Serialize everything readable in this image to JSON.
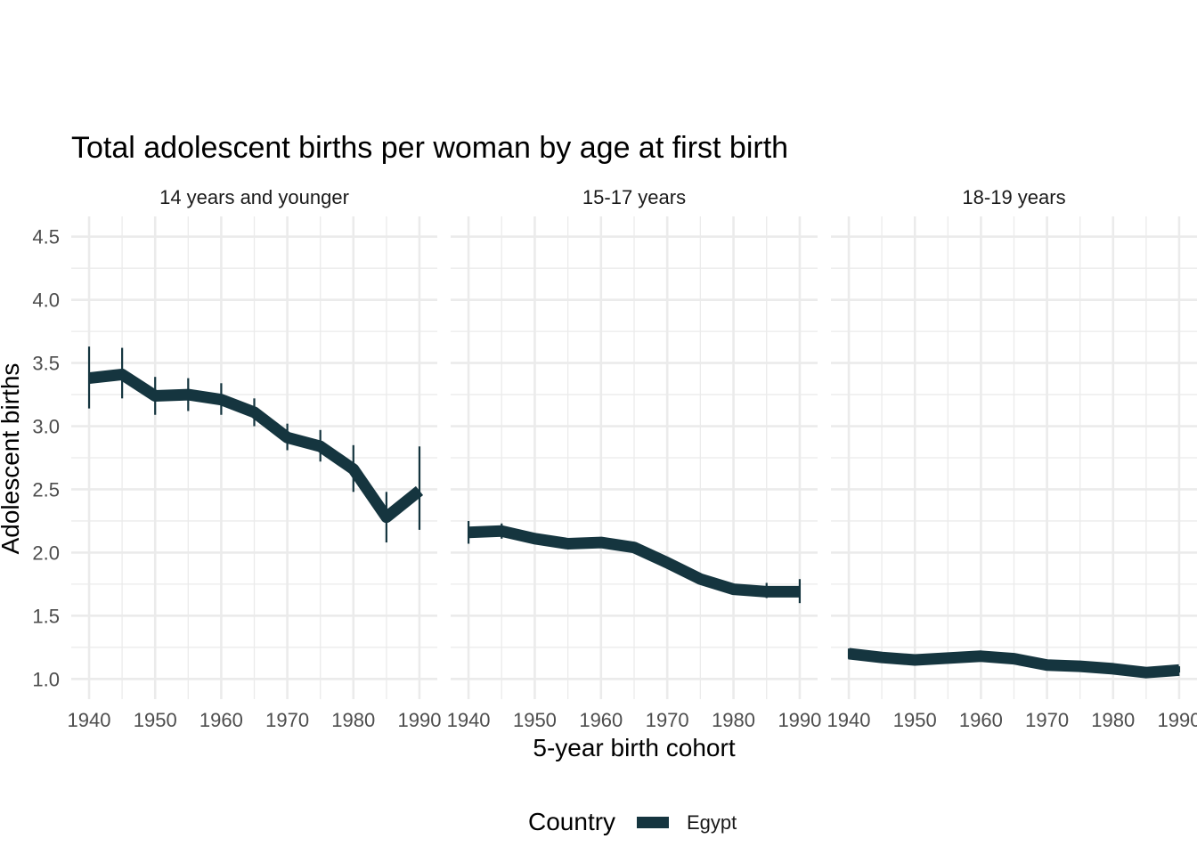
{
  "chart_data": {
    "type": "line",
    "title": "Total adolescent births per woman by age at first birth",
    "xlabel": "5-year birth cohort",
    "ylabel": "Adolescent births",
    "x_ticks": [
      1940,
      1950,
      1960,
      1970,
      1980,
      1990
    ],
    "x_tick_labels": [
      "1940",
      "1950",
      "1960",
      "1970",
      "1980",
      "1990"
    ],
    "y_ticks": [
      1.0,
      1.5,
      2.0,
      2.5,
      3.0,
      3.5,
      4.0,
      4.5
    ],
    "y_tick_labels": [
      "1.0",
      "1.5",
      "2.0",
      "2.5",
      "3.0",
      "3.5",
      "4.0",
      "4.5"
    ],
    "xlim": [
      1937.3,
      1992.7
    ],
    "ylim": [
      0.84,
      4.66
    ],
    "grid": true,
    "legend": {
      "title": "Country",
      "position": "bottom",
      "entries": [
        {
          "name": "Egypt",
          "color": "#15353f"
        }
      ]
    },
    "series_color": "#15353f",
    "panels": [
      {
        "label": "14 years and younger",
        "series": [
          {
            "name": "Egypt",
            "x": [
              1940,
              1945,
              1950,
              1955,
              1960,
              1965,
              1970,
              1975,
              1980,
              1985,
              1990
            ],
            "values": [
              3.38,
              3.41,
              3.24,
              3.25,
              3.21,
              3.11,
              2.91,
              2.84,
              2.66,
              2.28,
              2.49
            ],
            "lower": [
              3.14,
              3.22,
              3.09,
              3.12,
              3.09,
              3.0,
              2.81,
              2.72,
              2.48,
              2.08,
              2.18
            ],
            "upper": [
              3.63,
              3.62,
              3.39,
              3.38,
              3.34,
              3.22,
              3.02,
              2.97,
              2.85,
              2.48,
              2.84
            ]
          }
        ]
      },
      {
        "label": "15-17 years",
        "series": [
          {
            "name": "Egypt",
            "x": [
              1940,
              1945,
              1950,
              1955,
              1960,
              1965,
              1970,
              1975,
              1980,
              1985,
              1990
            ],
            "values": [
              2.16,
              2.17,
              2.11,
              2.07,
              2.08,
              2.04,
              1.92,
              1.79,
              1.71,
              1.69,
              1.69
            ],
            "lower": [
              2.07,
              2.11,
              2.07,
              2.04,
              2.05,
              2.01,
              1.89,
              1.76,
              1.68,
              1.64,
              1.6
            ],
            "upper": [
              2.25,
              2.23,
              2.15,
              2.1,
              2.11,
              2.07,
              1.95,
              1.82,
              1.74,
              1.76,
              1.79
            ]
          }
        ]
      },
      {
        "label": "18-19 years",
        "series": [
          {
            "name": "Egypt",
            "x": [
              1940,
              1945,
              1950,
              1955,
              1960,
              1965,
              1970,
              1975,
              1980,
              1985,
              1990
            ],
            "values": [
              1.2,
              1.17,
              1.15,
              1.165,
              1.18,
              1.16,
              1.11,
              1.1,
              1.08,
              1.05,
              1.07
            ],
            "lower": [
              1.16,
              1.15,
              1.135,
              1.15,
              1.165,
              1.145,
              1.1,
              1.09,
              1.07,
              1.04,
              1.05
            ],
            "upper": [
              1.24,
              1.19,
              1.165,
              1.18,
              1.195,
              1.175,
              1.125,
              1.11,
              1.09,
              1.06,
              1.1
            ]
          }
        ]
      }
    ]
  }
}
